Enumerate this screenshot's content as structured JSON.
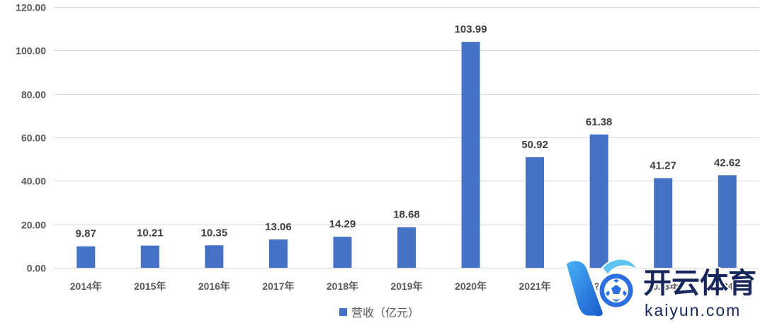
{
  "chart_data": {
    "type": "bar",
    "categories": [
      "2014年",
      "2015年",
      "2016年",
      "2017年",
      "2018年",
      "2019年",
      "2020年",
      "2021年",
      "2022年",
      "2023年",
      "2024年"
    ],
    "series": [
      {
        "name": "营收（亿元）",
        "values": [
          9.87,
          10.21,
          10.35,
          13.06,
          14.29,
          18.68,
          103.99,
          50.92,
          61.38,
          41.27,
          42.62
        ],
        "color": "#4472C4"
      }
    ],
    "yticks": [
      0,
      20,
      40,
      60,
      80,
      100,
      120
    ],
    "ylim": [
      0,
      120
    ],
    "grid": true,
    "data_labels": true,
    "legend": "bottom-center",
    "colors": {
      "grid": "#D9D9D9",
      "axis_text": "#595959",
      "data_label": "#404040"
    }
  },
  "watermark": {
    "brand_cn": "开云体育",
    "brand_url": "kaiyun.com",
    "logo_icon": "kaiyun-k-ball-logo"
  }
}
